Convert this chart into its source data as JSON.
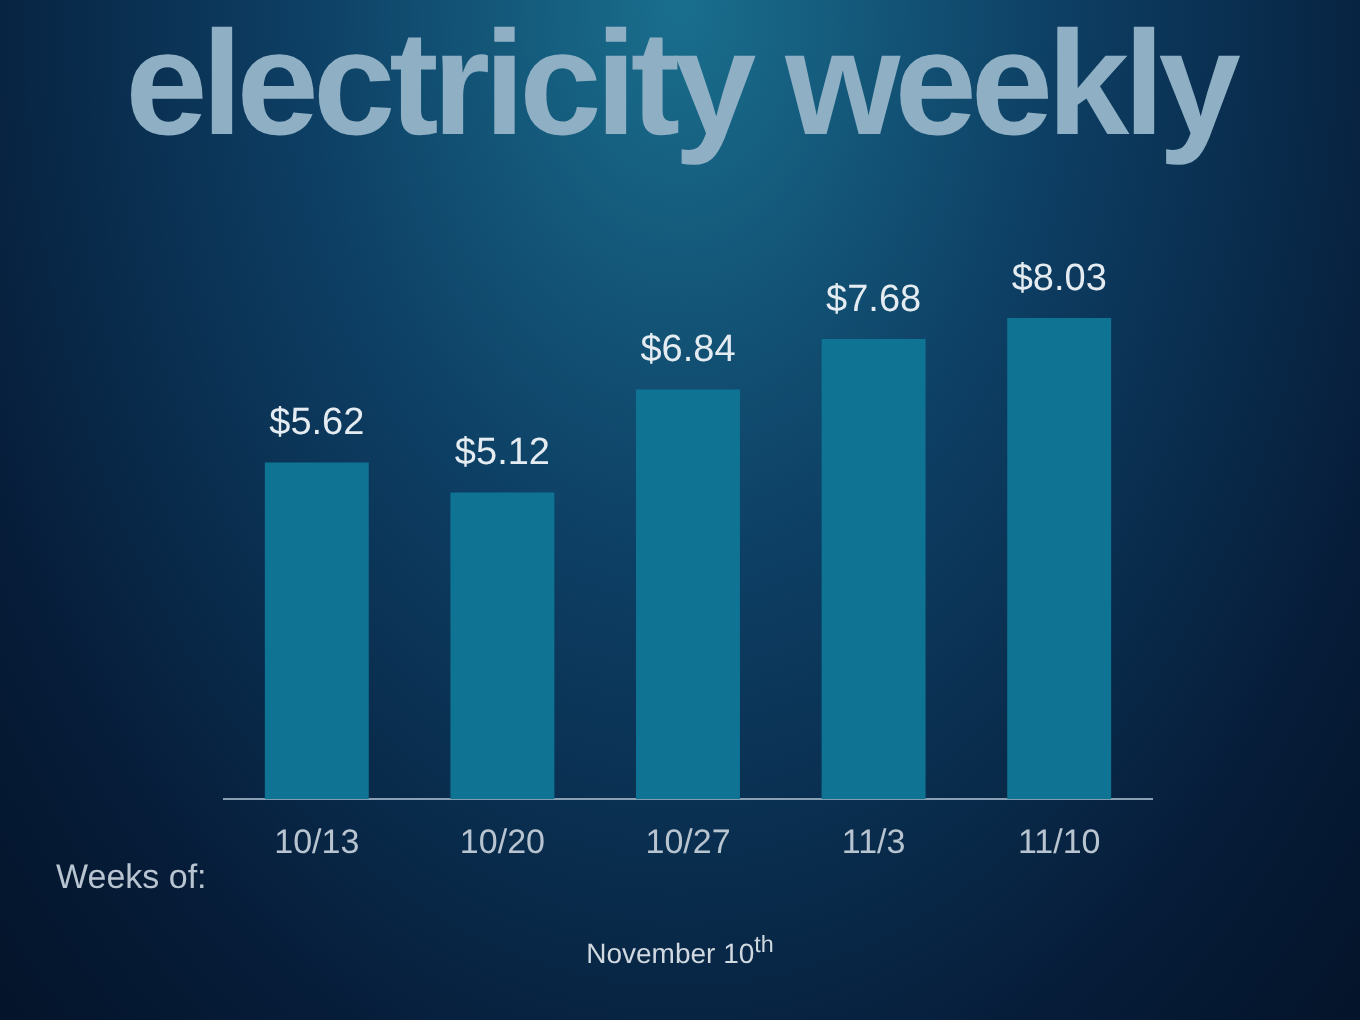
{
  "chart_data": {
    "type": "bar",
    "title": "electricity weekly",
    "xlabel": "Weeks of:",
    "categories": [
      "10/13",
      "10/20",
      "10/27",
      "11/3",
      "11/10"
    ],
    "values": [
      5.62,
      5.12,
      6.84,
      7.68,
      8.03
    ],
    "value_labels": [
      "$5.62",
      "$5.12",
      "$6.84",
      "$7.68",
      "$8.03"
    ],
    "color": "#0f7494",
    "grid": false,
    "legend": false,
    "annotations": [
      "November 10$^{th}$"
    ]
  }
}
